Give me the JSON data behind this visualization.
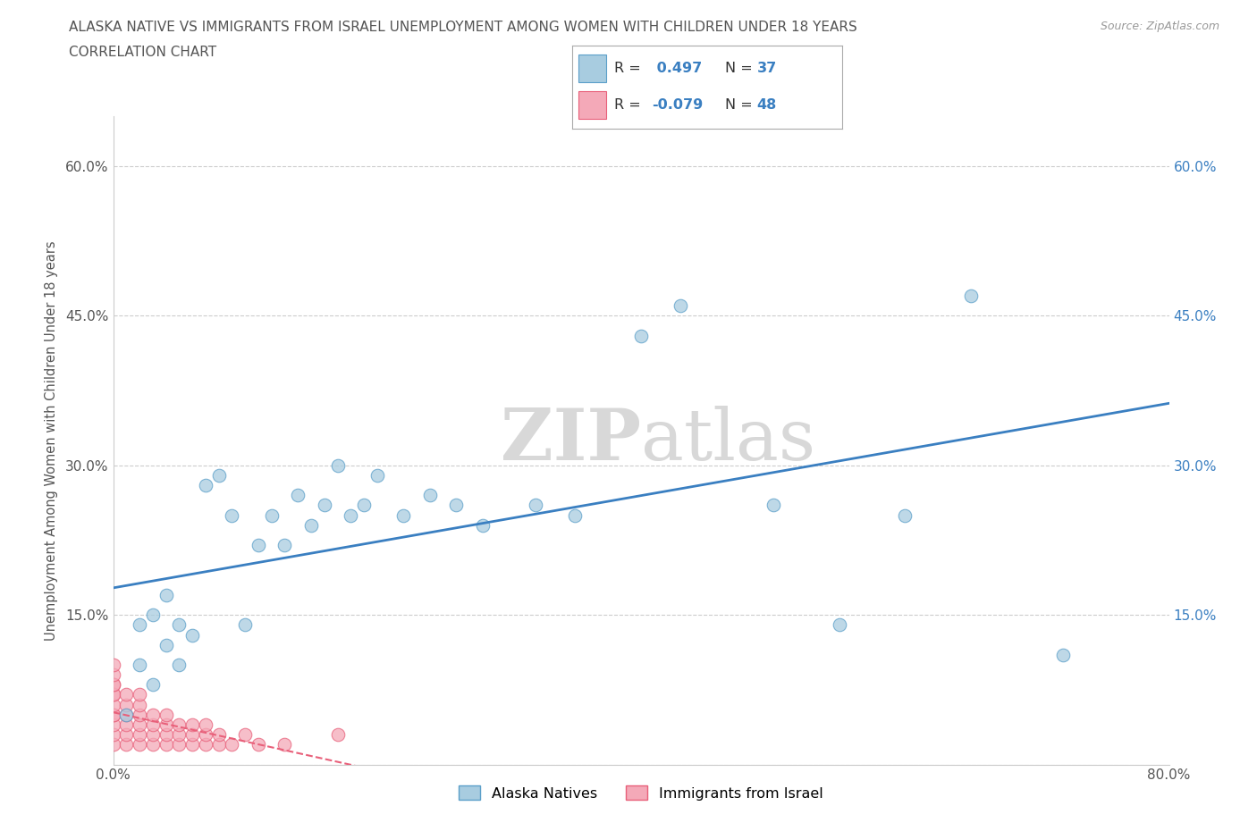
{
  "title_line1": "ALASKA NATIVE VS IMMIGRANTS FROM ISRAEL UNEMPLOYMENT AMONG WOMEN WITH CHILDREN UNDER 18 YEARS",
  "title_line2": "CORRELATION CHART",
  "source_text": "Source: ZipAtlas.com",
  "ylabel": "Unemployment Among Women with Children Under 18 years",
  "watermark": "ZIPatlas",
  "xlim": [
    0,
    0.8
  ],
  "ylim": [
    0,
    0.65
  ],
  "xtick_vals": [
    0.0,
    0.1,
    0.2,
    0.3,
    0.4,
    0.5,
    0.6,
    0.7,
    0.8
  ],
  "ytick_vals": [
    0.0,
    0.15,
    0.3,
    0.45,
    0.6
  ],
  "alaska_R": 0.497,
  "alaska_N": 37,
  "israel_R": -0.079,
  "israel_N": 48,
  "alaska_color": "#a8cce0",
  "alaska_edge_color": "#5b9fc9",
  "israel_color": "#f4a9b8",
  "israel_edge_color": "#e8607a",
  "trend_alaska_color": "#3a7fc1",
  "trend_israel_color": "#e8607a",
  "alaska_x": [
    0.01,
    0.02,
    0.02,
    0.03,
    0.03,
    0.04,
    0.04,
    0.05,
    0.05,
    0.06,
    0.07,
    0.08,
    0.09,
    0.1,
    0.11,
    0.12,
    0.13,
    0.14,
    0.15,
    0.16,
    0.17,
    0.18,
    0.19,
    0.2,
    0.22,
    0.24,
    0.26,
    0.28,
    0.32,
    0.35,
    0.4,
    0.43,
    0.5,
    0.55,
    0.6,
    0.65,
    0.72
  ],
  "alaska_y": [
    0.05,
    0.1,
    0.14,
    0.08,
    0.15,
    0.12,
    0.17,
    0.1,
    0.14,
    0.13,
    0.28,
    0.29,
    0.25,
    0.14,
    0.22,
    0.25,
    0.22,
    0.27,
    0.24,
    0.26,
    0.3,
    0.25,
    0.26,
    0.29,
    0.25,
    0.27,
    0.26,
    0.24,
    0.26,
    0.25,
    0.43,
    0.46,
    0.26,
    0.14,
    0.25,
    0.47,
    0.11
  ],
  "israel_x": [
    0.0,
    0.0,
    0.0,
    0.0,
    0.0,
    0.0,
    0.0,
    0.0,
    0.0,
    0.0,
    0.0,
    0.0,
    0.01,
    0.01,
    0.01,
    0.01,
    0.01,
    0.01,
    0.02,
    0.02,
    0.02,
    0.02,
    0.02,
    0.02,
    0.03,
    0.03,
    0.03,
    0.03,
    0.04,
    0.04,
    0.04,
    0.04,
    0.05,
    0.05,
    0.05,
    0.06,
    0.06,
    0.06,
    0.07,
    0.07,
    0.07,
    0.08,
    0.08,
    0.09,
    0.1,
    0.11,
    0.13,
    0.17
  ],
  "israel_y": [
    0.02,
    0.03,
    0.04,
    0.05,
    0.05,
    0.06,
    0.07,
    0.07,
    0.08,
    0.08,
    0.09,
    0.1,
    0.02,
    0.03,
    0.04,
    0.05,
    0.06,
    0.07,
    0.02,
    0.03,
    0.04,
    0.05,
    0.06,
    0.07,
    0.02,
    0.03,
    0.04,
    0.05,
    0.02,
    0.03,
    0.04,
    0.05,
    0.02,
    0.03,
    0.04,
    0.02,
    0.03,
    0.04,
    0.02,
    0.03,
    0.04,
    0.02,
    0.03,
    0.02,
    0.03,
    0.02,
    0.02,
    0.03
  ],
  "background_color": "#ffffff",
  "grid_color": "#cccccc",
  "title_color": "#555555",
  "watermark_color": "#d8d8d8",
  "right_tick_color": "#3a7fc1"
}
